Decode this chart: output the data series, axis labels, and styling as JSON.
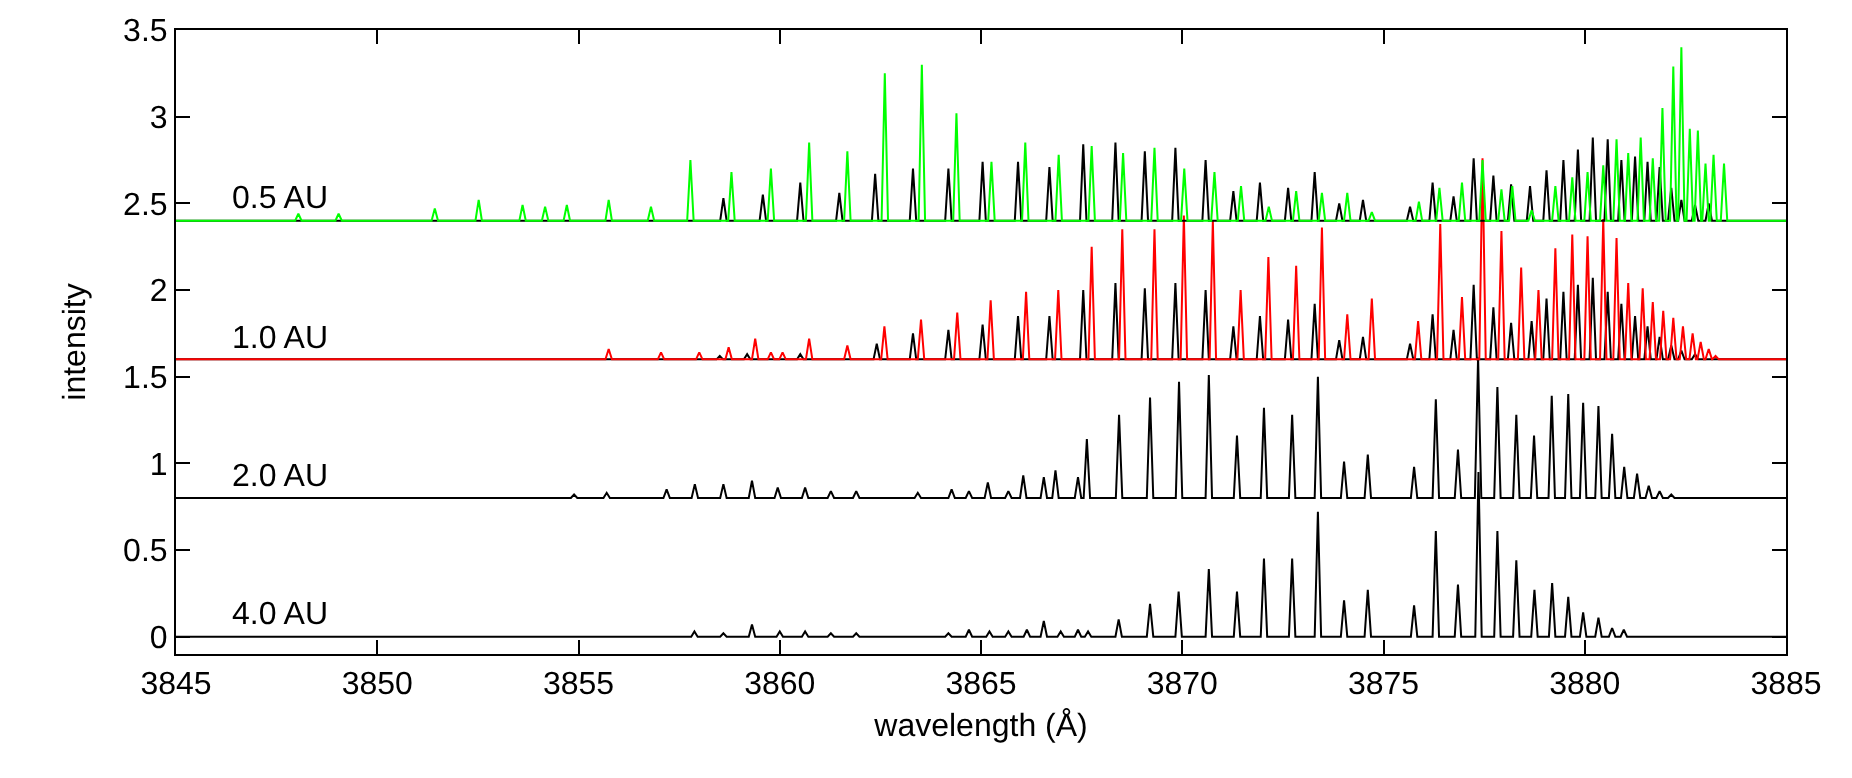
{
  "chart_data": {
    "type": "line",
    "xlabel": "wavelength (Å)",
    "ylabel": "intensity",
    "xlim": [
      3845,
      3885
    ],
    "xticks": [
      3845,
      3850,
      3855,
      3860,
      3865,
      3870,
      3875,
      3880,
      3885
    ],
    "ylim": [
      -0.1,
      3.5
    ],
    "yticks": [
      0,
      0.5,
      1,
      1.5,
      2,
      2.5,
      3,
      3.5
    ],
    "grid": false,
    "legend": false,
    "series": [
      {
        "name": "4.0 AU",
        "color": "#000000",
        "x": [
          3845,
          3857.8,
          3857.88,
          3857.96,
          3858.52,
          3858.6,
          3858.68,
          3859.23,
          3859.31,
          3859.39,
          3859.92,
          3860.0,
          3860.08,
          3860.55,
          3860.63,
          3860.71,
          3861.19,
          3861.27,
          3861.35,
          3861.82,
          3861.9,
          3861.98,
          3864.11,
          3864.19,
          3864.27,
          3864.62,
          3864.7,
          3864.78,
          3865.13,
          3865.21,
          3865.29,
          3865.6,
          3865.68,
          3865.76,
          3866.06,
          3866.14,
          3866.22,
          3866.48,
          3866.56,
          3866.64,
          3866.9,
          3866.98,
          3867.06,
          3867.33,
          3867.41,
          3867.49,
          3867.58,
          3867.66,
          3867.74,
          3868.34,
          3868.42,
          3868.5,
          3869.12,
          3869.2,
          3869.28,
          3869.83,
          3869.91,
          3869.99,
          3870.58,
          3870.66,
          3870.74,
          3871.28,
          3871.36,
          3871.44,
          3871.95,
          3872.03,
          3872.11,
          3872.65,
          3872.73,
          3872.81,
          3873.29,
          3873.37,
          3873.45,
          3873.94,
          3874.02,
          3874.1,
          3874.53,
          3874.61,
          3874.69,
          3875.68,
          3875.76,
          3875.84,
          3876.22,
          3876.3,
          3876.38,
          3876.77,
          3876.85,
          3876.93,
          3877.28,
          3877.36,
          3877.44,
          3877.75,
          3877.83,
          3877.91,
          3878.22,
          3878.3,
          3878.38,
          3878.67,
          3878.75,
          3878.83,
          3879.11,
          3879.19,
          3879.27,
          3879.51,
          3879.59,
          3879.67,
          3879.88,
          3879.96,
          3880.04,
          3880.26,
          3880.34,
          3880.42,
          3880.6,
          3880.68,
          3880.76,
          3880.89,
          3880.97,
          3881.05,
          3885
        ],
        "values": [
          0,
          0,
          0.03,
          0,
          0,
          0.02,
          0,
          0,
          0.07,
          0,
          0,
          0.03,
          0,
          0,
          0.03,
          0,
          0,
          0.02,
          0,
          0,
          0.02,
          0,
          0,
          0.02,
          0,
          0,
          0.04,
          0,
          0,
          0.03,
          0,
          0,
          0.03,
          0,
          0,
          0.04,
          0,
          0,
          0.09,
          0,
          0,
          0.03,
          0,
          0,
          0.04,
          0,
          0,
          0.03,
          0,
          0,
          0.1,
          0,
          0,
          0.19,
          0,
          0,
          0.26,
          0,
          0,
          0.39,
          0,
          0,
          0.26,
          0,
          0,
          0.45,
          0,
          0,
          0.45,
          0,
          0,
          0.72,
          0,
          0,
          0.21,
          0,
          0,
          0.27,
          0,
          0,
          0.18,
          0,
          0,
          0.61,
          0,
          0,
          0.3,
          0,
          0,
          0.95,
          0,
          0,
          0.61,
          0,
          0,
          0.44,
          0,
          0,
          0.27,
          0,
          0,
          0.31,
          0,
          0,
          0.23,
          0,
          0,
          0.14,
          0,
          0,
          0.11,
          0,
          0,
          0.05,
          0,
          0,
          0.04,
          0,
          0
        ]
      },
      {
        "name": "2.0 AU",
        "color": "#000000",
        "x": [
          3845,
          3854.81,
          3854.89,
          3854.97,
          3855.62,
          3855.7,
          3855.78,
          3857.11,
          3857.19,
          3857.27,
          3857.81,
          3857.89,
          3857.97,
          3858.52,
          3858.6,
          3858.68,
          3859.23,
          3859.31,
          3859.39,
          3859.87,
          3859.95,
          3860.03,
          3860.55,
          3860.63,
          3860.71,
          3861.19,
          3861.27,
          3861.35,
          3861.82,
          3861.9,
          3861.98,
          3863.35,
          3863.43,
          3863.51,
          3864.19,
          3864.27,
          3864.35,
          3864.62,
          3864.7,
          3864.78,
          3865.09,
          3865.17,
          3865.25,
          3865.6,
          3865.68,
          3865.76,
          3865.97,
          3866.05,
          3866.13,
          3866.48,
          3866.56,
          3866.64,
          3866.77,
          3866.85,
          3866.93,
          3867.33,
          3867.41,
          3867.49,
          3867.55,
          3867.63,
          3867.71,
          3868.35,
          3868.43,
          3868.51,
          3869.12,
          3869.2,
          3869.28,
          3869.84,
          3869.92,
          3870.0,
          3870.58,
          3870.66,
          3870.74,
          3871.28,
          3871.36,
          3871.44,
          3871.95,
          3872.03,
          3872.11,
          3872.65,
          3872.73,
          3872.81,
          3873.29,
          3873.37,
          3873.45,
          3873.94,
          3874.02,
          3874.1,
          3874.53,
          3874.61,
          3874.69,
          3875.68,
          3875.76,
          3875.84,
          3876.22,
          3876.3,
          3876.38,
          3876.77,
          3876.85,
          3876.93,
          3877.27,
          3877.35,
          3877.43,
          3877.75,
          3877.83,
          3877.91,
          3878.22,
          3878.3,
          3878.38,
          3878.66,
          3878.74,
          3878.82,
          3879.1,
          3879.18,
          3879.26,
          3879.51,
          3879.59,
          3879.67,
          3879.88,
          3879.96,
          3880.04,
          3880.26,
          3880.34,
          3880.42,
          3880.6,
          3880.68,
          3880.76,
          3880.9,
          3880.98,
          3881.06,
          3881.22,
          3881.3,
          3881.38,
          3881.51,
          3881.59,
          3881.67,
          3881.78,
          3881.86,
          3881.94,
          3882.07,
          3882.15,
          3882.23,
          3885
        ],
        "values": [
          0.8,
          0.8,
          0.82,
          0.8,
          0.8,
          0.83,
          0.8,
          0.8,
          0.85,
          0.8,
          0.8,
          0.88,
          0.8,
          0.8,
          0.88,
          0.8,
          0.8,
          0.9,
          0.8,
          0.8,
          0.86,
          0.8,
          0.8,
          0.86,
          0.8,
          0.8,
          0.84,
          0.8,
          0.8,
          0.84,
          0.8,
          0.8,
          0.83,
          0.8,
          0.8,
          0.85,
          0.8,
          0.8,
          0.84,
          0.8,
          0.8,
          0.89,
          0.8,
          0.8,
          0.84,
          0.8,
          0.8,
          0.93,
          0.8,
          0.8,
          0.92,
          0.8,
          0.8,
          0.96,
          0.8,
          0.8,
          0.92,
          0.8,
          0.8,
          1.14,
          0.8,
          0.8,
          1.28,
          0.8,
          0.8,
          1.38,
          0.8,
          0.8,
          1.47,
          0.8,
          0.8,
          1.51,
          0.8,
          0.8,
          1.16,
          0.8,
          0.8,
          1.32,
          0.8,
          0.8,
          1.28,
          0.8,
          0.8,
          1.5,
          0.8,
          0.8,
          1.01,
          0.8,
          0.8,
          1.05,
          0.8,
          0.8,
          0.98,
          0.8,
          0.8,
          1.37,
          0.8,
          0.8,
          1.08,
          0.8,
          0.8,
          1.61,
          0.8,
          0.8,
          1.44,
          0.8,
          0.8,
          1.28,
          0.8,
          0.8,
          1.16,
          0.8,
          0.8,
          1.39,
          0.8,
          0.8,
          1.4,
          0.8,
          0.8,
          1.35,
          0.8,
          0.8,
          1.33,
          0.8,
          0.8,
          1.17,
          0.8,
          0.8,
          0.98,
          0.8,
          0.8,
          0.94,
          0.8,
          0.8,
          0.87,
          0.8,
          0.8,
          0.84,
          0.8,
          0.8,
          0.82,
          0.8,
          0.8
        ]
      },
      {
        "color": "#000000",
        "x": [
          3845,
          3858.43,
          3858.51,
          3858.59,
          3859.11,
          3859.19,
          3859.27,
          3860.43,
          3860.51,
          3860.59,
          3862.33,
          3862.41,
          3862.49,
          3863.23,
          3863.31,
          3863.39,
          3864.11,
          3864.19,
          3864.27,
          3864.96,
          3865.04,
          3865.12,
          3865.84,
          3865.92,
          3866.0,
          3866.62,
          3866.7,
          3866.78,
          3867.46,
          3867.54,
          3867.62,
          3868.26,
          3868.34,
          3868.42,
          3868.99,
          3869.07,
          3869.15,
          3869.75,
          3869.83,
          3869.91,
          3870.5,
          3870.58,
          3870.66,
          3871.19,
          3871.27,
          3871.35,
          3871.85,
          3871.93,
          3872.01,
          3872.55,
          3872.63,
          3872.71,
          3873.21,
          3873.29,
          3873.37,
          3873.82,
          3873.9,
          3873.98,
          3874.41,
          3874.49,
          3874.57,
          3875.58,
          3875.66,
          3875.74,
          3876.14,
          3876.22,
          3876.3,
          3876.66,
          3876.74,
          3876.82,
          3877.16,
          3877.24,
          3877.32,
          3877.65,
          3877.73,
          3877.81,
          3878.09,
          3878.17,
          3878.25,
          3878.6,
          3878.68,
          3878.76,
          3878.97,
          3879.05,
          3879.13,
          3879.39,
          3879.47,
          3879.55,
          3879.75,
          3879.83,
          3879.91,
          3880.12,
          3880.2,
          3880.28,
          3880.49,
          3880.57,
          3880.65,
          3880.83,
          3880.91,
          3880.99,
          3881.17,
          3881.25,
          3881.33,
          3881.48,
          3881.56,
          3881.64,
          3881.78,
          3881.86,
          3881.94,
          3882.07,
          3882.15,
          3882.23,
          3882.32,
          3882.4,
          3882.48,
          3882.66,
          3882.74,
          3882.82,
          3885
        ],
        "values": [
          1.6,
          1.6,
          1.62,
          1.6,
          1.6,
          1.63,
          1.6,
          1.6,
          1.63,
          1.6,
          1.6,
          1.69,
          1.6,
          1.6,
          1.75,
          1.6,
          1.6,
          1.77,
          1.6,
          1.6,
          1.8,
          1.6,
          1.6,
          1.85,
          1.6,
          1.6,
          1.85,
          1.6,
          1.6,
          2.0,
          1.6,
          1.6,
          2.04,
          1.6,
          1.6,
          2.01,
          1.6,
          1.6,
          2.04,
          1.6,
          1.6,
          2.0,
          1.6,
          1.6,
          1.79,
          1.6,
          1.6,
          1.85,
          1.6,
          1.6,
          1.83,
          1.6,
          1.6,
          1.92,
          1.6,
          1.6,
          1.71,
          1.6,
          1.6,
          1.73,
          1.6,
          1.6,
          1.69,
          1.6,
          1.6,
          1.86,
          1.6,
          1.6,
          1.77,
          1.6,
          1.6,
          2.03,
          1.6,
          1.6,
          1.9,
          1.6,
          1.6,
          1.81,
          1.6,
          1.6,
          1.82,
          1.6,
          1.6,
          1.95,
          1.6,
          1.6,
          1.99,
          1.6,
          1.6,
          2.03,
          1.6,
          1.6,
          2.07,
          1.6,
          1.6,
          1.99,
          1.6,
          1.6,
          1.92,
          1.6,
          1.6,
          1.85,
          1.6,
          1.6,
          1.79,
          1.6,
          1.6,
          1.73,
          1.6,
          1.6,
          1.68,
          1.6,
          1.6,
          1.65,
          1.6,
          1.6,
          1.63,
          1.6,
          1.6
        ]
      },
      {
        "name": "1.0 AU",
        "color": "#ff0000",
        "x": [
          3845,
          3855.67,
          3855.75,
          3855.83,
          3856.97,
          3857.05,
          3857.13,
          3857.92,
          3858.0,
          3858.08,
          3858.65,
          3858.73,
          3858.81,
          3859.31,
          3859.39,
          3859.47,
          3859.7,
          3859.78,
          3859.86,
          3859.99,
          3860.07,
          3860.15,
          3860.65,
          3860.73,
          3860.81,
          3861.6,
          3861.68,
          3861.76,
          3862.52,
          3862.6,
          3862.68,
          3863.43,
          3863.51,
          3863.59,
          3864.33,
          3864.41,
          3864.49,
          3865.16,
          3865.24,
          3865.32,
          3866.04,
          3866.12,
          3866.2,
          3866.84,
          3866.92,
          3867.0,
          3867.67,
          3867.75,
          3867.83,
          3868.43,
          3868.51,
          3868.59,
          3869.23,
          3869.31,
          3869.39,
          3869.96,
          3870.04,
          3870.12,
          3870.68,
          3870.76,
          3870.84,
          3871.37,
          3871.45,
          3871.53,
          3872.06,
          3872.14,
          3872.22,
          3872.75,
          3872.83,
          3872.91,
          3873.39,
          3873.47,
          3873.55,
          3874.02,
          3874.1,
          3874.18,
          3874.63,
          3874.71,
          3874.79,
          3875.78,
          3875.86,
          3875.94,
          3876.33,
          3876.41,
          3876.49,
          3876.87,
          3876.95,
          3877.03,
          3877.38,
          3877.46,
          3877.54,
          3877.85,
          3877.93,
          3878.01,
          3878.34,
          3878.42,
          3878.5,
          3878.77,
          3878.85,
          3878.93,
          3879.19,
          3879.27,
          3879.35,
          3879.61,
          3879.69,
          3879.77,
          3879.99,
          3880.07,
          3880.15,
          3880.38,
          3880.46,
          3880.54,
          3880.71,
          3880.79,
          3880.87,
          3881.0,
          3881.08,
          3881.16,
          3881.36,
          3881.44,
          3881.52,
          3881.61,
          3881.69,
          3881.77,
          3881.87,
          3881.95,
          3882.03,
          3882.12,
          3882.2,
          3882.28,
          3882.36,
          3882.44,
          3882.52,
          3882.6,
          3882.68,
          3882.76,
          3882.8,
          3882.88,
          3882.96,
          3883.0,
          3883.08,
          3883.16,
          3883.17,
          3883.25,
          3883.33,
          3885
        ],
        "values": [
          1.6,
          1.6,
          1.66,
          1.6,
          1.6,
          1.64,
          1.6,
          1.6,
          1.64,
          1.6,
          1.6,
          1.67,
          1.6,
          1.6,
          1.72,
          1.6,
          1.6,
          1.64,
          1.6,
          1.6,
          1.64,
          1.6,
          1.6,
          1.72,
          1.6,
          1.6,
          1.68,
          1.6,
          1.6,
          1.79,
          1.6,
          1.6,
          1.83,
          1.6,
          1.6,
          1.87,
          1.6,
          1.6,
          1.94,
          1.6,
          1.6,
          1.99,
          1.6,
          1.6,
          2.0,
          1.6,
          1.6,
          2.25,
          1.6,
          1.6,
          2.35,
          1.6,
          1.6,
          2.35,
          1.6,
          1.6,
          2.43,
          1.6,
          1.6,
          2.4,
          1.6,
          1.6,
          2.0,
          1.6,
          1.6,
          2.19,
          1.6,
          1.6,
          2.14,
          1.6,
          1.6,
          2.36,
          1.6,
          1.6,
          1.86,
          1.6,
          1.6,
          1.95,
          1.6,
          1.6,
          1.82,
          1.6,
          1.6,
          2.38,
          1.6,
          1.6,
          1.96,
          1.6,
          1.6,
          2.76,
          1.6,
          1.6,
          2.34,
          1.6,
          1.6,
          2.13,
          1.6,
          1.6,
          2.0,
          1.6,
          1.6,
          2.24,
          1.6,
          1.6,
          2.32,
          1.6,
          1.6,
          2.31,
          1.6,
          1.6,
          2.41,
          1.6,
          1.6,
          2.3,
          1.6,
          1.6,
          2.04,
          1.6,
          1.6,
          2.01,
          1.6,
          1.6,
          1.93,
          1.6,
          1.6,
          1.88,
          1.6,
          1.6,
          1.84,
          1.6,
          1.6,
          1.79,
          1.6,
          1.6,
          1.75,
          1.6,
          1.6,
          1.7,
          1.6,
          1.6,
          1.66,
          1.6,
          1.6,
          1.62,
          1.6,
          1.6
        ]
      },
      {
        "color": "#000000",
        "x": [
          3845,
          3858.52,
          3858.6,
          3858.68,
          3859.5,
          3859.58,
          3859.66,
          3860.43,
          3860.51,
          3860.59,
          3861.4,
          3861.48,
          3861.56,
          3862.29,
          3862.37,
          3862.45,
          3863.23,
          3863.31,
          3863.39,
          3864.11,
          3864.19,
          3864.27,
          3864.96,
          3865.04,
          3865.12,
          3865.84,
          3865.92,
          3866.0,
          3866.62,
          3866.7,
          3866.78,
          3867.46,
          3867.54,
          3867.62,
          3868.26,
          3868.34,
          3868.42,
          3868.99,
          3869.07,
          3869.15,
          3869.75,
          3869.83,
          3869.91,
          3870.5,
          3870.58,
          3870.66,
          3871.19,
          3871.27,
          3871.35,
          3871.85,
          3871.93,
          3872.01,
          3872.55,
          3872.63,
          3872.71,
          3873.21,
          3873.29,
          3873.37,
          3873.82,
          3873.9,
          3873.98,
          3874.41,
          3874.49,
          3874.57,
          3875.58,
          3875.66,
          3875.74,
          3876.14,
          3876.22,
          3876.3,
          3876.66,
          3876.74,
          3876.82,
          3877.16,
          3877.24,
          3877.32,
          3877.65,
          3877.73,
          3877.81,
          3878.09,
          3878.17,
          3878.25,
          3878.56,
          3878.64,
          3878.72,
          3878.97,
          3879.05,
          3879.13,
          3879.39,
          3879.47,
          3879.55,
          3879.75,
          3879.83,
          3879.91,
          3880.12,
          3880.2,
          3880.28,
          3880.49,
          3880.57,
          3880.65,
          3880.83,
          3880.91,
          3880.99,
          3881.17,
          3881.25,
          3881.33,
          3881.48,
          3881.56,
          3881.64,
          3881.78,
          3881.86,
          3881.94,
          3882.07,
          3882.15,
          3882.23,
          3882.32,
          3882.4,
          3882.48,
          3882.66,
          3882.74,
          3882.82,
          3883.0,
          3883.08,
          3883.16,
          3885
        ],
        "values": [
          2.4,
          2.4,
          2.53,
          2.4,
          2.4,
          2.55,
          2.4,
          2.4,
          2.62,
          2.4,
          2.4,
          2.56,
          2.4,
          2.4,
          2.67,
          2.4,
          2.4,
          2.7,
          2.4,
          2.4,
          2.7,
          2.4,
          2.4,
          2.74,
          2.4,
          2.4,
          2.74,
          2.4,
          2.4,
          2.71,
          2.4,
          2.4,
          2.84,
          2.4,
          2.4,
          2.85,
          2.4,
          2.4,
          2.8,
          2.4,
          2.4,
          2.82,
          2.4,
          2.4,
          2.75,
          2.4,
          2.4,
          2.57,
          2.4,
          2.4,
          2.62,
          2.4,
          2.4,
          2.59,
          2.4,
          2.4,
          2.68,
          2.4,
          2.4,
          2.5,
          2.4,
          2.4,
          2.52,
          2.4,
          2.4,
          2.48,
          2.4,
          2.4,
          2.62,
          2.4,
          2.4,
          2.54,
          2.4,
          2.4,
          2.76,
          2.4,
          2.4,
          2.66,
          2.4,
          2.4,
          2.61,
          2.4,
          2.4,
          2.6,
          2.4,
          2.4,
          2.69,
          2.4,
          2.4,
          2.75,
          2.4,
          2.4,
          2.81,
          2.4,
          2.4,
          2.88,
          2.4,
          2.4,
          2.87,
          2.4,
          2.4,
          2.75,
          2.4,
          2.4,
          2.77,
          2.4,
          2.4,
          2.74,
          2.4,
          2.4,
          2.71,
          2.4,
          2.4,
          2.59,
          2.4,
          2.4,
          2.52,
          2.4,
          2.4,
          2.49,
          2.4,
          2.4,
          2.5,
          2.4,
          2.4
        ]
      },
      {
        "name": "0.5 AU",
        "color": "#00ff00",
        "x": [
          3845,
          3847.96,
          3848.04,
          3848.12,
          3848.96,
          3849.04,
          3849.12,
          3851.35,
          3851.43,
          3851.51,
          3852.44,
          3852.52,
          3852.6,
          3853.53,
          3853.61,
          3853.69,
          3854.09,
          3854.17,
          3854.25,
          3854.63,
          3854.71,
          3854.79,
          3855.67,
          3855.75,
          3855.83,
          3856.72,
          3856.8,
          3856.88,
          3857.7,
          3857.78,
          3857.86,
          3858.72,
          3858.8,
          3858.88,
          3859.7,
          3859.78,
          3859.86,
          3860.65,
          3860.73,
          3860.81,
          3861.6,
          3861.68,
          3861.76,
          3862.53,
          3862.61,
          3862.69,
          3863.45,
          3863.53,
          3863.61,
          3864.31,
          3864.39,
          3864.47,
          3865.18,
          3865.26,
          3865.34,
          3866.02,
          3866.1,
          3866.18,
          3866.85,
          3866.93,
          3867.01,
          3867.67,
          3867.75,
          3867.83,
          3868.45,
          3868.53,
          3868.61,
          3869.23,
          3869.31,
          3869.39,
          3869.97,
          3870.05,
          3870.13,
          3870.72,
          3870.8,
          3870.88,
          3871.38,
          3871.46,
          3871.54,
          3872.07,
          3872.15,
          3872.23,
          3872.75,
          3872.83,
          3872.91,
          3873.39,
          3873.47,
          3873.55,
          3874.02,
          3874.1,
          3874.18,
          3874.63,
          3874.71,
          3874.79,
          3875.8,
          3875.88,
          3875.96,
          3876.31,
          3876.39,
          3876.47,
          3876.87,
          3876.95,
          3877.03,
          3877.38,
          3877.46,
          3877.54,
          3877.85,
          3877.93,
          3878.01,
          3878.12,
          3878.2,
          3878.28,
          3878.6,
          3878.68,
          3878.76,
          3879.19,
          3879.27,
          3879.35,
          3879.61,
          3879.69,
          3879.77,
          3879.99,
          3880.07,
          3880.15,
          3880.38,
          3880.46,
          3880.54,
          3880.71,
          3880.79,
          3880.87,
          3881.0,
          3881.08,
          3881.16,
          3881.31,
          3881.39,
          3881.47,
          3881.61,
          3881.69,
          3881.77,
          3881.85,
          3881.93,
          3882.01,
          3882.12,
          3882.2,
          3882.28,
          3882.32,
          3882.4,
          3882.48,
          3882.53,
          3882.61,
          3882.69,
          3882.73,
          3882.81,
          3882.89,
          3882.92,
          3883.0,
          3883.08,
          3883.12,
          3883.2,
          3883.28,
          3883.38,
          3883.46,
          3883.54,
          3885
        ],
        "values": [
          2.4,
          2.4,
          2.44,
          2.4,
          2.4,
          2.44,
          2.4,
          2.4,
          2.47,
          2.4,
          2.4,
          2.52,
          2.4,
          2.4,
          2.49,
          2.4,
          2.4,
          2.48,
          2.4,
          2.4,
          2.49,
          2.4,
          2.4,
          2.52,
          2.4,
          2.4,
          2.48,
          2.4,
          2.4,
          2.75,
          2.4,
          2.4,
          2.68,
          2.4,
          2.4,
          2.7,
          2.4,
          2.4,
          2.85,
          2.4,
          2.4,
          2.8,
          2.4,
          2.4,
          3.25,
          2.4,
          2.4,
          3.3,
          2.4,
          2.4,
          3.02,
          2.4,
          2.4,
          2.74,
          2.4,
          2.4,
          2.85,
          2.4,
          2.4,
          2.78,
          2.4,
          2.4,
          2.83,
          2.4,
          2.4,
          2.79,
          2.4,
          2.4,
          2.82,
          2.4,
          2.4,
          2.7,
          2.4,
          2.4,
          2.68,
          2.4,
          2.4,
          2.6,
          2.4,
          2.4,
          2.48,
          2.4,
          2.4,
          2.57,
          2.4,
          2.4,
          2.56,
          2.4,
          2.4,
          2.56,
          2.4,
          2.4,
          2.45,
          2.4,
          2.4,
          2.51,
          2.4,
          2.4,
          2.59,
          2.4,
          2.4,
          2.62,
          2.4,
          2.4,
          2.75,
          2.4,
          2.4,
          2.58,
          2.4,
          2.4,
          2.6,
          2.4,
          2.4,
          2.46,
          2.4,
          2.4,
          2.6,
          2.4,
          2.4,
          2.65,
          2.4,
          2.4,
          2.68,
          2.4,
          2.4,
          2.72,
          2.4,
          2.4,
          2.87,
          2.4,
          2.4,
          2.79,
          2.4,
          2.4,
          2.88,
          2.4,
          2.4,
          2.76,
          2.4,
          2.4,
          3.05,
          2.4,
          2.4,
          3.29,
          2.4,
          2.4,
          3.4,
          2.4,
          2.4,
          2.93,
          2.4,
          2.4,
          2.92,
          2.4,
          2.4,
          2.73,
          2.4,
          2.4,
          2.78,
          2.4,
          2.4,
          2.73,
          2.4,
          2.4
        ]
      }
    ]
  }
}
